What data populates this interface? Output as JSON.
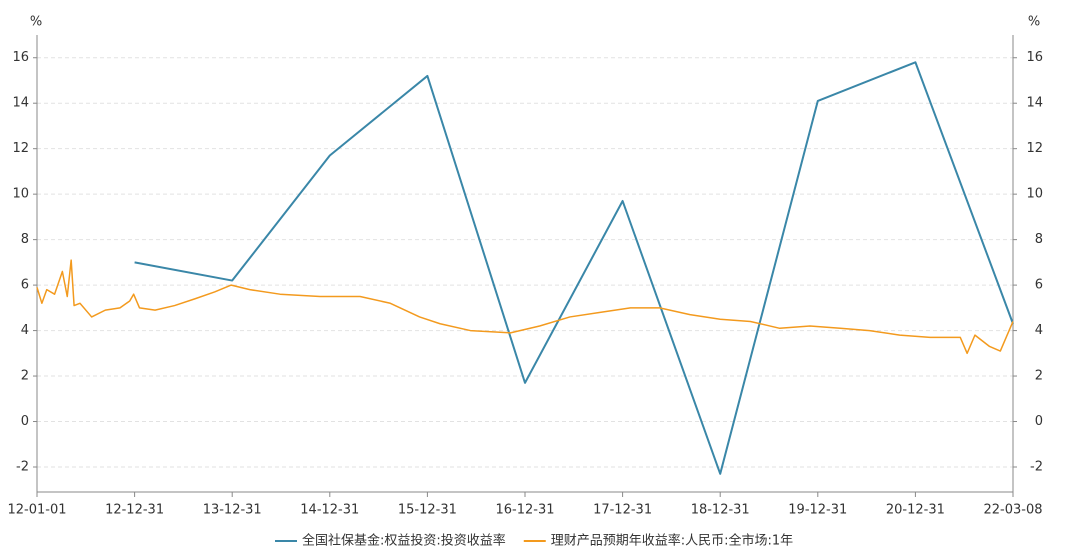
{
  "chart_data": {
    "type": "line",
    "y_label": "%",
    "y2_label": "%",
    "xlim": [
      0,
      10
    ],
    "xticks": [
      {
        "value": 0,
        "label": "12-01-01"
      },
      {
        "value": 1,
        "label": "12-12-31"
      },
      {
        "value": 2,
        "label": "13-12-31"
      },
      {
        "value": 3,
        "label": "14-12-31"
      },
      {
        "value": 4,
        "label": "15-12-31"
      },
      {
        "value": 5,
        "label": "16-12-31"
      },
      {
        "value": 6,
        "label": "17-12-31"
      },
      {
        "value": 7,
        "label": "18-12-31"
      },
      {
        "value": 8,
        "label": "19-12-31"
      },
      {
        "value": 9,
        "label": "20-12-31"
      },
      {
        "value": 10,
        "label": "22-03-08"
      }
    ],
    "ylim": [
      -3.1,
      17
    ],
    "yticks": [
      -2,
      0,
      2,
      4,
      6,
      8,
      10,
      12,
      14,
      16
    ],
    "y2lim": [
      -3.1,
      17
    ],
    "y2ticks": [
      -2,
      0,
      2,
      4,
      6,
      8,
      10,
      12,
      14,
      16
    ],
    "grid": true,
    "legend": "bottom",
    "series": [
      {
        "name": "全国社保基金:权益投资:投资收益率",
        "color": "#3a87a8",
        "x": [
          1,
          2,
          3,
          4,
          5,
          6,
          7,
          8,
          9,
          10
        ],
        "values": [
          7.0,
          6.2,
          11.7,
          15.2,
          1.7,
          9.7,
          -2.3,
          14.1,
          15.8,
          4.3
        ]
      },
      {
        "name": "理财产品预期年收益率:人民币:全市场:1年",
        "color": "#f39a1e",
        "x": [
          0,
          0.05,
          0.1,
          0.18,
          0.26,
          0.31,
          0.35,
          0.38,
          0.44,
          0.56,
          0.7,
          0.85,
          0.95,
          0.99,
          1.05,
          1.21,
          1.41,
          1.62,
          1.82,
          1.99,
          2.18,
          2.49,
          2.9,
          3.31,
          3.62,
          3.92,
          4.13,
          4.44,
          4.85,
          5.15,
          5.46,
          5.77,
          6.08,
          6.38,
          6.69,
          7.0,
          7.31,
          7.61,
          7.92,
          8.23,
          8.53,
          8.84,
          9.15,
          9.46,
          9.53,
          9.61,
          9.76,
          9.87,
          10
        ],
        "values": [
          5.9,
          5.2,
          5.8,
          5.6,
          6.6,
          5.5,
          7.1,
          5.1,
          5.2,
          4.6,
          4.9,
          5.0,
          5.3,
          5.6,
          5.0,
          4.9,
          5.1,
          5.4,
          5.7,
          6.0,
          5.8,
          5.6,
          5.5,
          5.5,
          5.2,
          4.6,
          4.3,
          4.0,
          3.9,
          4.2,
          4.6,
          4.8,
          5.0,
          5.0,
          4.7,
          4.5,
          4.4,
          4.1,
          4.2,
          4.1,
          4.0,
          3.8,
          3.7,
          3.7,
          3.0,
          3.8,
          3.3,
          3.1,
          4.4
        ]
      }
    ]
  }
}
